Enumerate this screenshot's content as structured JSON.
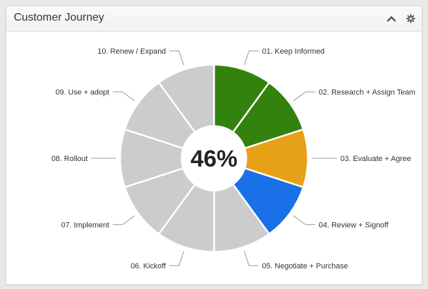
{
  "panel": {
    "title": "Customer Journey",
    "collapse_icon": "chevron-up-icon",
    "settings_icon": "gear-icon"
  },
  "chart_data": {
    "type": "pie",
    "variant": "donut-segmented",
    "center_label": "46%",
    "categories": [
      "01. Keep Informed",
      "02. Research + Assign Team",
      "03. Evaluate + Agree",
      "04. Review + Signoff",
      "05. Negotiate + Purchase",
      "06. Kickoff",
      "07. Implement",
      "08. Rollout",
      "09. Use + adopt",
      "10. Renew / Expand"
    ],
    "values": [
      1,
      1,
      1,
      1,
      1,
      1,
      1,
      1,
      1,
      1
    ],
    "colors": [
      "#33820d",
      "#33820d",
      "#e7a117",
      "#1a70e6",
      "#cccccc",
      "#cccccc",
      "#cccccc",
      "#cccccc",
      "#cccccc",
      "#cccccc"
    ],
    "status": [
      "complete",
      "complete",
      "in-progress",
      "current",
      "pending",
      "pending",
      "pending",
      "pending",
      "pending",
      "pending"
    ],
    "legend": "labels-around"
  }
}
